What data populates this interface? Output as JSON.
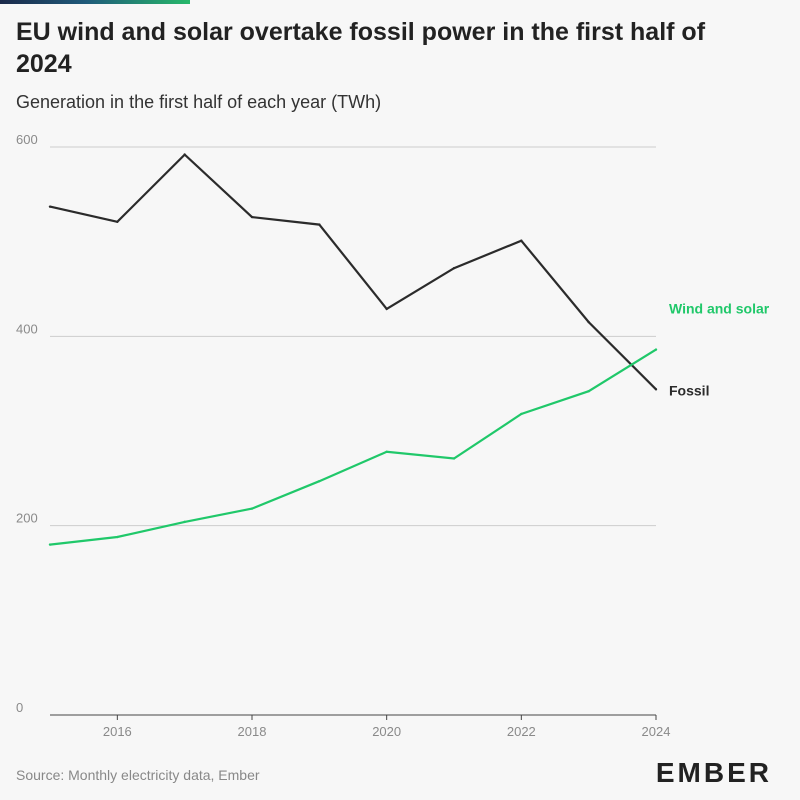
{
  "header": {
    "title": "EU wind and solar overtake fossil power in the first half of 2024",
    "subtitle": "Generation in the first half of each year (TWh)"
  },
  "footer": {
    "source": "Source: Monthly electricity data, Ember",
    "logo": "EMBER"
  },
  "colors": {
    "fossil": "#2b2b2b",
    "wind_solar": "#20c86a",
    "grid": "#cccccc",
    "brand_gradient": [
      "#1b2a4a",
      "#27b86a"
    ]
  },
  "chart_data": {
    "type": "line",
    "title": "EU wind and solar overtake fossil power in the first half of 2024",
    "subtitle": "Generation in the first half of each year (TWh)",
    "xlabel": "",
    "ylabel": "",
    "x": [
      2015,
      2016,
      2017,
      2018,
      2019,
      2020,
      2021,
      2022,
      2023,
      2024
    ],
    "xlim": [
      2015,
      2024
    ],
    "ylim": [
      0,
      600
    ],
    "xticks": [
      "2016",
      "2018",
      "2020",
      "2022",
      "2024"
    ],
    "yticks": [
      "0",
      "200",
      "400",
      "600"
    ],
    "grid": true,
    "legend": "direct labels at line ends",
    "series": [
      {
        "name": "Fossil",
        "color": "#2b2b2b",
        "values": [
          537,
          521,
          592,
          526,
          518,
          429,
          472,
          501,
          415,
          344
        ]
      },
      {
        "name": "Wind and solar",
        "color": "#20c86a",
        "values": [
          180,
          188,
          204,
          218,
          247,
          278,
          271,
          318,
          342,
          386
        ]
      }
    ]
  }
}
